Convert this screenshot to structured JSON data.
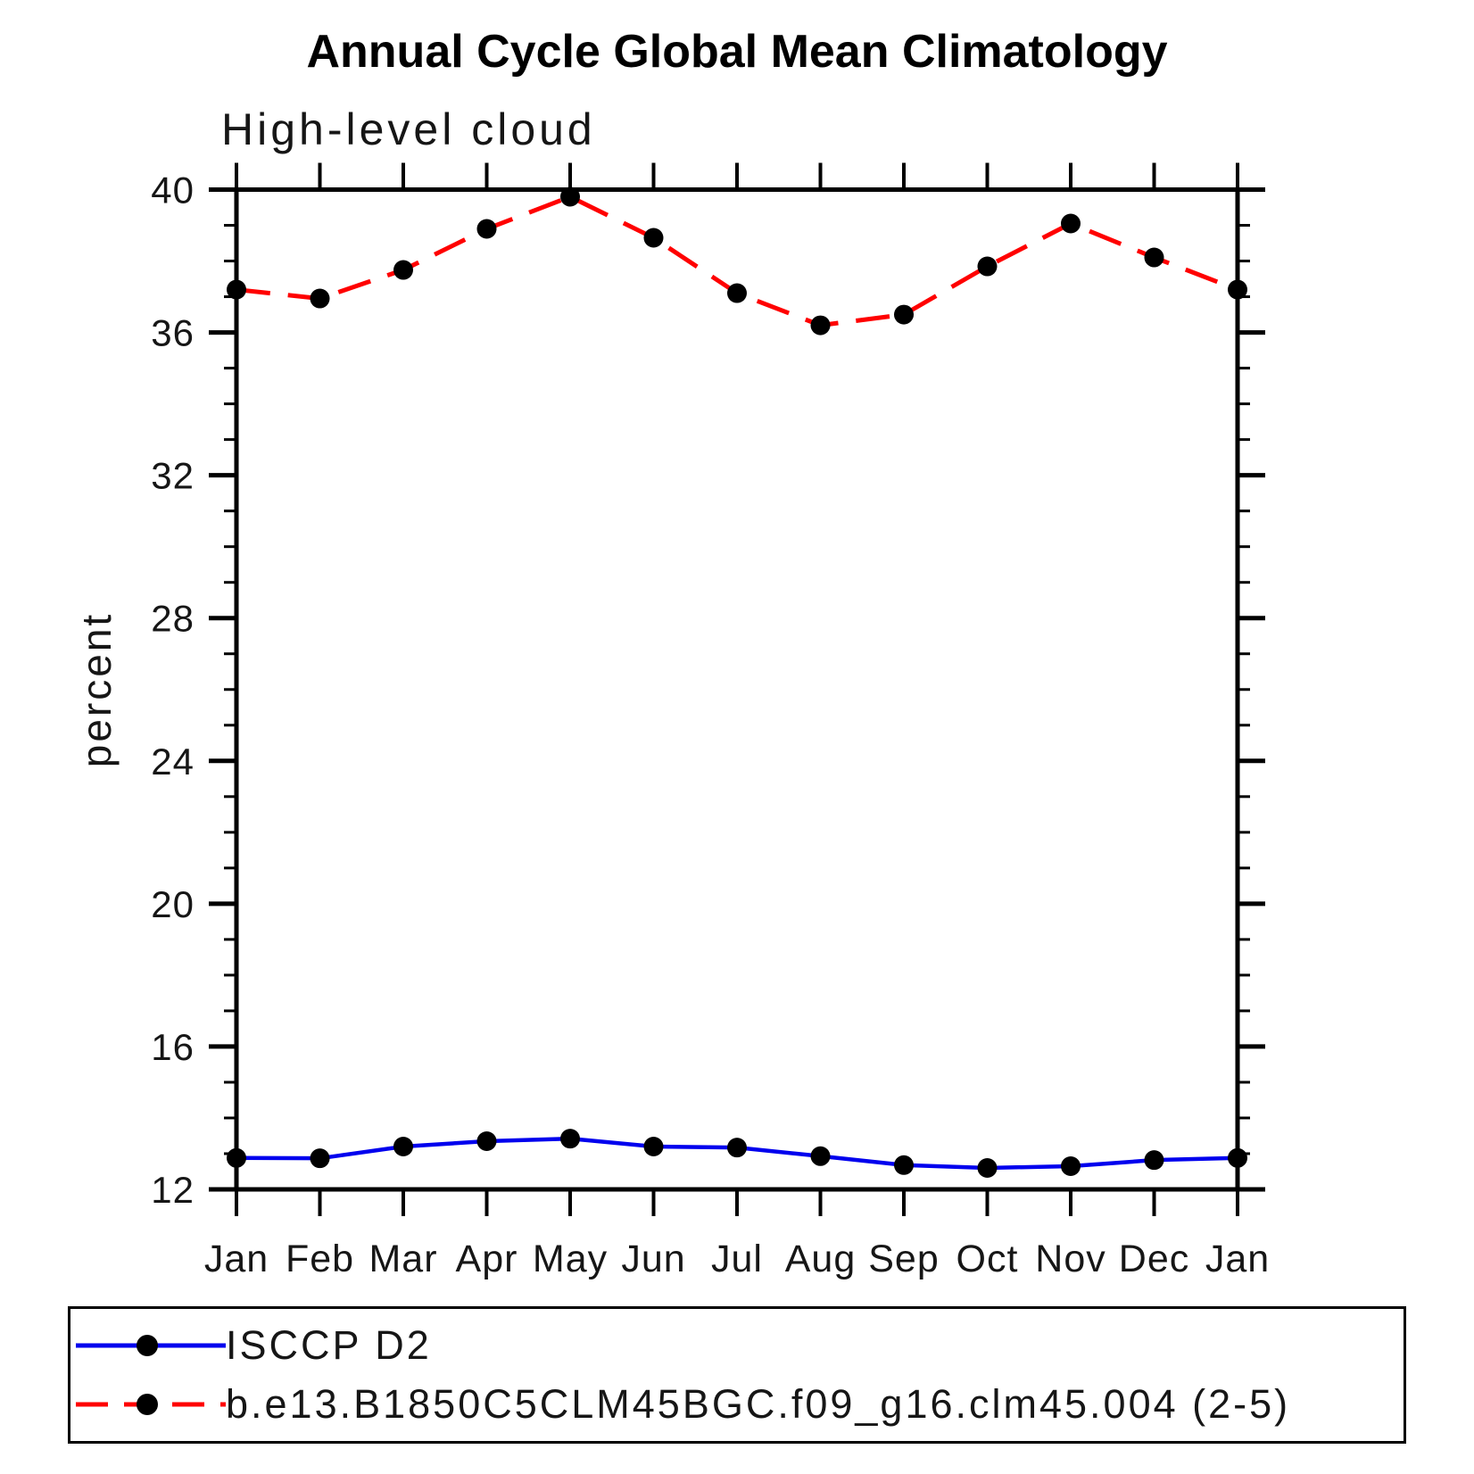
{
  "title": "Annual Cycle Global Mean Climatology",
  "subtitle": "High-level cloud",
  "y_axis_label": "percent",
  "chart_data": {
    "type": "line",
    "title": "Annual Cycle Global Mean Climatology",
    "subtitle": "High-level cloud",
    "ylabel": "percent",
    "xlabel": "",
    "x_categories": [
      "Jan",
      "Feb",
      "Mar",
      "Apr",
      "May",
      "Jun",
      "Jul",
      "Aug",
      "Sep",
      "Oct",
      "Nov",
      "Dec",
      "Jan"
    ],
    "ylim": [
      12,
      40
    ],
    "y_major_ticks": [
      12,
      16,
      20,
      24,
      28,
      32,
      36,
      40
    ],
    "y_minor_step": 1,
    "grid": false,
    "legend_position": "bottom-left",
    "series": [
      {
        "name": "ISCCP D2",
        "color": "#0000ee",
        "line_style": "solid",
        "marker": "filled-circle",
        "marker_color": "#000000",
        "values": [
          12.88,
          12.87,
          13.2,
          13.35,
          13.42,
          13.2,
          13.17,
          12.93,
          12.68,
          12.6,
          12.65,
          12.82,
          12.88
        ]
      },
      {
        "name": "b.e13.B1850C5CLM45BGC.f09_g16.clm45.004 (2-5)",
        "color": "#ff0000",
        "line_style": "dashed",
        "marker": "filled-circle",
        "marker_color": "#000000",
        "values": [
          37.2,
          36.95,
          37.75,
          38.9,
          39.8,
          38.65,
          37.1,
          36.2,
          36.5,
          37.85,
          39.05,
          38.1,
          37.2
        ]
      }
    ]
  }
}
